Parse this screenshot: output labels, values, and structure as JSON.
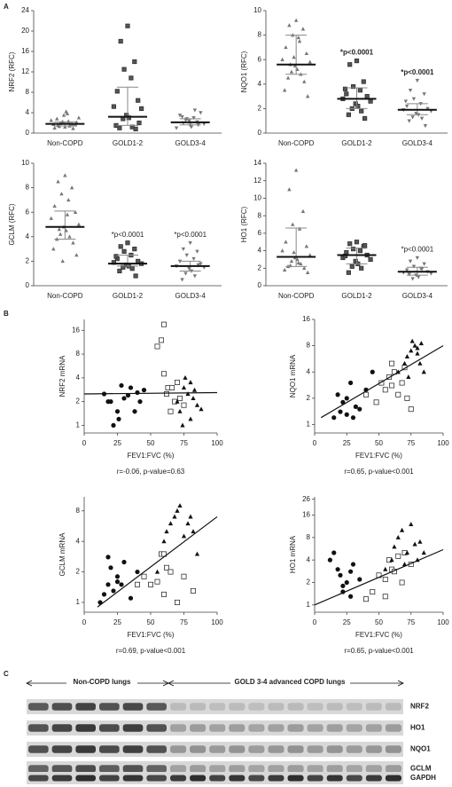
{
  "panel_labels": [
    "A",
    "B",
    "C"
  ],
  "chart_data": [
    {
      "type": "dotplot",
      "ylabel": "NRF2 (RFC)",
      "categories": [
        "Non-COPD",
        "GOLD1-2",
        "GOLD3-4"
      ],
      "markers": [
        "triangle",
        "square",
        "triangle-down"
      ],
      "ylim": [
        0,
        24
      ],
      "yticks": [
        0,
        4,
        8,
        12,
        16,
        20,
        24
      ],
      "groups": [
        [
          1.2,
          1.5,
          1.8,
          2.0,
          2.3,
          1.0,
          1.6,
          2.5,
          3.0,
          3.5,
          4.2,
          1.9,
          1.4,
          2.8,
          0.9,
          1.7,
          2.1,
          2.2,
          3.8,
          1.3
        ],
        [
          21,
          18,
          14,
          12.5,
          10.8,
          8.2,
          6.4,
          5.2,
          4.8,
          3.5,
          3.0,
          2.8,
          1.2,
          1.0,
          0.8,
          1.5,
          2.0
        ],
        [
          1.5,
          2.0,
          2.2,
          2.8,
          3.0,
          3.5,
          4.0,
          1.0,
          1.8,
          2.4,
          1.2,
          2.6,
          4.5,
          3.2,
          1.6
        ]
      ],
      "medians": [
        1.8,
        3.2,
        2.1
      ],
      "q1": [
        1.4,
        1.5,
        1.6
      ],
      "q3": [
        2.2,
        9.0,
        2.8
      ],
      "p_labels": [
        null,
        null,
        null
      ],
      "p_bold": false
    },
    {
      "type": "dotplot",
      "ylabel": "NQO1 (RFC)",
      "categories": [
        "Non-COPD",
        "GOLD1-2",
        "GOLD3-4"
      ],
      "markers": [
        "triangle",
        "square",
        "triangle-down"
      ],
      "ylim": [
        0,
        10
      ],
      "yticks": [
        0,
        2,
        4,
        6,
        8,
        10
      ],
      "groups": [
        [
          9.2,
          8.8,
          8.5,
          8.0,
          7.5,
          7.0,
          6.5,
          6.0,
          5.8,
          5.5,
          5.2,
          5.0,
          4.8,
          4.5,
          4.2,
          3.5,
          3.0,
          6.2,
          7.8,
          5.6
        ],
        [
          5.9,
          5.6,
          4.2,
          3.8,
          3.5,
          3.2,
          3.0,
          2.8,
          2.6,
          2.4,
          2.2,
          2.0,
          1.8,
          1.5,
          1.2,
          3.6
        ],
        [
          4.3,
          3.5,
          3.2,
          2.8,
          2.4,
          2.2,
          2.0,
          1.9,
          1.8,
          1.6,
          1.5,
          1.3,
          1.2,
          1.0,
          0.6,
          2.6
        ]
      ],
      "medians": [
        5.6,
        2.8,
        1.9
      ],
      "q1": [
        4.8,
        2.0,
        1.5
      ],
      "q3": [
        8.0,
        3.7,
        2.4
      ],
      "p_labels": [
        null,
        "*p<0.0001",
        "*p<0.0001"
      ],
      "p_bold": true
    },
    {
      "type": "dotplot",
      "ylabel": "GCLM (RFC)",
      "categories": [
        "Non-COPD",
        "GOLD1-2",
        "GOLD3-4"
      ],
      "markers": [
        "triangle",
        "square",
        "triangle-down"
      ],
      "ylim": [
        0,
        10
      ],
      "yticks": [
        0,
        2,
        4,
        6,
        8,
        10
      ],
      "groups": [
        [
          9.0,
          8.5,
          8.0,
          7.5,
          7.0,
          6.5,
          6.0,
          5.5,
          5.0,
          4.8,
          4.5,
          4.2,
          4.0,
          3.8,
          3.5,
          3.0,
          2.5,
          2.0,
          5.8,
          4.6
        ],
        [
          3.5,
          3.2,
          3.0,
          2.8,
          2.5,
          2.2,
          2.0,
          1.9,
          1.8,
          1.7,
          1.6,
          1.5,
          1.4,
          1.2,
          0.8,
          2.4
        ],
        [
          3.5,
          3.0,
          2.8,
          2.5,
          2.2,
          2.0,
          1.8,
          1.6,
          1.5,
          1.4,
          1.2,
          1.0,
          0.8,
          0.5,
          1.7
        ]
      ],
      "medians": [
        4.8,
        1.8,
        1.6
      ],
      "q1": [
        3.8,
        1.6,
        1.2
      ],
      "q3": [
        6.1,
        2.5,
        2.0
      ],
      "p_labels": [
        null,
        "*p<0.0001",
        "*p<0.0001"
      ],
      "p_bold": false
    },
    {
      "type": "dotplot",
      "ylabel": "HO1 (RFC)",
      "categories": [
        "Non-COPD",
        "GOLD1-2",
        "GOLD3-4"
      ],
      "markers": [
        "triangle",
        "square",
        "triangle-down"
      ],
      "ylim": [
        0,
        14
      ],
      "yticks": [
        0,
        2,
        4,
        6,
        8,
        10,
        12,
        14
      ],
      "groups": [
        [
          13.2,
          11.0,
          8.5,
          7.0,
          6.5,
          5.0,
          4.5,
          4.0,
          3.5,
          3.2,
          3.0,
          2.8,
          2.5,
          2.2,
          2.0,
          1.8,
          1.5,
          3.8,
          2.6,
          2.3
        ],
        [
          5.0,
          4.8,
          4.5,
          4.2,
          4.0,
          3.8,
          3.5,
          3.2,
          3.0,
          2.8,
          2.5,
          2.2,
          2.0,
          1.5,
          4.6,
          3.4
        ],
        [
          3.2,
          2.8,
          2.5,
          2.2,
          2.0,
          1.8,
          1.6,
          1.5,
          1.4,
          1.2,
          1.0,
          0.8,
          1.9,
          1.3
        ]
      ],
      "medians": [
        3.3,
        3.5,
        1.6
      ],
      "q1": [
        2.2,
        2.5,
        1.2
      ],
      "q3": [
        6.6,
        4.3,
        2.1
      ],
      "p_labels": [
        null,
        null,
        "*p<0.0001"
      ],
      "p_bold": false
    },
    {
      "type": "scatter",
      "ylabel": "NRF2 mRNA",
      "xlabel": "FEV1:FVC (%)",
      "annotation": "r=-0.06, p-value=0.63",
      "ylog": true,
      "xlim": [
        0,
        100
      ],
      "xticks": [
        0,
        25,
        50,
        75,
        100
      ],
      "ylim": [
        0.8,
        22
      ],
      "yticks": [
        1,
        2,
        4,
        8,
        16
      ],
      "series": [
        {
          "marker": "circle",
          "x": [
            15,
            20,
            25,
            30,
            35,
            40,
            45,
            22,
            18,
            28,
            38,
            42,
            33,
            26
          ],
          "y": [
            2.5,
            2,
            1.5,
            2.2,
            3,
            2.6,
            2.8,
            1,
            2,
            3.2,
            1.5,
            2,
            2.4,
            1.2
          ]
        },
        {
          "marker": "open-square",
          "x": [
            55,
            58,
            60,
            62,
            63,
            65,
            68,
            70,
            72,
            75,
            60,
            66
          ],
          "y": [
            10,
            12,
            19,
            2.5,
            3,
            1.5,
            2,
            3.5,
            2.2,
            1.8,
            4.5,
            3
          ]
        },
        {
          "marker": "triangle",
          "x": [
            70,
            72,
            75,
            78,
            80,
            82,
            85,
            76,
            74,
            80,
            83,
            88
          ],
          "y": [
            2,
            1.5,
            3,
            2.5,
            1.2,
            2.2,
            1.8,
            4,
            1,
            3.5,
            2.8,
            1.6
          ]
        }
      ],
      "fit": {
        "x": [
          0,
          100
        ],
        "y": [
          2.5,
          2.6
        ]
      }
    },
    {
      "type": "scatter",
      "ylabel": "NQO1 mRNA",
      "xlabel": "FEV1:FVC (%)",
      "annotation": "r=0.65, p-value<0.001",
      "ylog": true,
      "xlim": [
        0,
        100
      ],
      "xticks": [
        0,
        25,
        50,
        75,
        100
      ],
      "ylim": [
        0.8,
        16
      ],
      "yticks": [
        1,
        2,
        4,
        8,
        16
      ],
      "series": [
        {
          "marker": "circle",
          "x": [
            15,
            18,
            20,
            22,
            25,
            28,
            30,
            35,
            40,
            45,
            25,
            32
          ],
          "y": [
            1.2,
            2.2,
            1.4,
            1.8,
            1.3,
            3,
            1.2,
            1.5,
            2.5,
            4,
            2,
            1.6
          ]
        },
        {
          "marker": "open-square",
          "x": [
            40,
            48,
            52,
            55,
            58,
            60,
            62,
            65,
            68,
            70,
            72,
            75,
            60
          ],
          "y": [
            2.2,
            1.8,
            3,
            2.5,
            3.5,
            2.8,
            4,
            2.2,
            3,
            4.5,
            2,
            1.5,
            5
          ]
        },
        {
          "marker": "triangle",
          "x": [
            65,
            70,
            72,
            75,
            78,
            80,
            82,
            85,
            80,
            76,
            73,
            83
          ],
          "y": [
            4,
            5,
            6,
            7,
            8,
            6.5,
            5,
            4,
            7.5,
            9,
            3.5,
            8.5
          ]
        }
      ],
      "fit": {
        "x": [
          5,
          100
        ],
        "y": [
          1.2,
          8
        ]
      }
    },
    {
      "type": "scatter",
      "ylabel": "GCLM mRNA",
      "xlabel": "FEV1:FVC (%)",
      "annotation": "r=0.69, p-value<0.001",
      "ylog": true,
      "xlim": [
        0,
        100
      ],
      "xticks": [
        0,
        25,
        50,
        75,
        100
      ],
      "ylim": [
        0.8,
        11
      ],
      "yticks": [
        1,
        2,
        4,
        8
      ],
      "series": [
        {
          "marker": "circle",
          "x": [
            12,
            15,
            18,
            20,
            22,
            25,
            28,
            30,
            35,
            40,
            18,
            25
          ],
          "y": [
            1,
            1.2,
            1.5,
            2.2,
            1.3,
            1.8,
            1.5,
            2.5,
            1.1,
            2,
            2.8,
            1.6
          ]
        },
        {
          "marker": "open-square",
          "x": [
            40,
            45,
            50,
            55,
            58,
            60,
            62,
            65,
            70,
            75,
            82,
            60
          ],
          "y": [
            1.5,
            1.8,
            1.5,
            1.6,
            3,
            3,
            2.2,
            2,
            1,
            1.8,
            1.3,
            1.2
          ]
        },
        {
          "marker": "triangle",
          "x": [
            55,
            60,
            62,
            65,
            68,
            70,
            72,
            75,
            78,
            80,
            82,
            85
          ],
          "y": [
            2,
            4,
            5,
            6,
            7,
            8,
            9,
            4.5,
            6,
            7,
            5,
            3
          ]
        }
      ],
      "fit": {
        "x": [
          10,
          100
        ],
        "y": [
          0.9,
          7
        ]
      }
    },
    {
      "type": "scatter",
      "ylabel": "HO1 mRNA",
      "xlabel": "FEV1:FVC (%)",
      "annotation": "r=0.65, p-value<0.001",
      "ylog": true,
      "xlim": [
        0,
        100
      ],
      "xticks": [
        0,
        25,
        50,
        75,
        100
      ],
      "ylim": [
        0.8,
        28
      ],
      "yticks": [
        1,
        2,
        4,
        8,
        16,
        26
      ],
      "series": [
        {
          "marker": "circle",
          "x": [
            12,
            15,
            18,
            20,
            22,
            25,
            28,
            30,
            35,
            40,
            22,
            28
          ],
          "y": [
            4,
            5,
            3,
            2.5,
            1.5,
            2,
            1.3,
            3.5,
            2.2,
            1.2,
            1.8,
            2.8
          ]
        },
        {
          "marker": "open-square",
          "x": [
            40,
            45,
            50,
            55,
            58,
            60,
            62,
            65,
            70,
            75,
            55,
            68
          ],
          "y": [
            1.2,
            1.5,
            2.5,
            2.2,
            4,
            3,
            2.8,
            4.5,
            5,
            3.5,
            1.3,
            2
          ]
        },
        {
          "marker": "triangle",
          "x": [
            55,
            60,
            62,
            65,
            68,
            70,
            72,
            75,
            78,
            80,
            82,
            85
          ],
          "y": [
            3,
            4,
            6,
            8,
            10,
            3.5,
            5,
            12,
            6.5,
            4,
            7,
            5
          ]
        }
      ],
      "fit": {
        "x": [
          0,
          100
        ],
        "y": [
          1,
          5.5
        ]
      }
    }
  ],
  "blot": {
    "groups": [
      "Non-COPD lungs",
      "GOLD 3-4 advanced COPD lungs"
    ],
    "rows": [
      "NRF2",
      "HO1",
      "NQO1",
      "GCLM",
      "GAPDH"
    ]
  }
}
